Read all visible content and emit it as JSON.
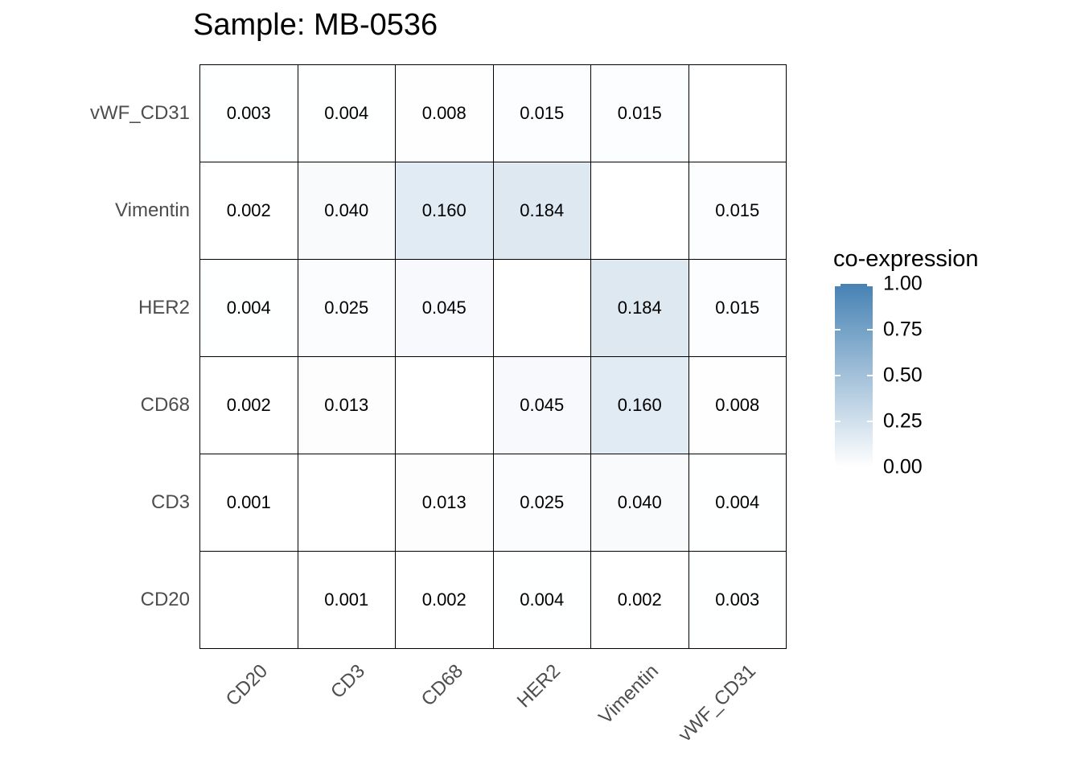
{
  "chart_data": {
    "type": "heatmap",
    "title": "Sample: MB-0536",
    "x_categories": [
      "CD20",
      "CD3",
      "CD68",
      "HER2",
      "Vimentin",
      "vWF_CD31"
    ],
    "y_categories_top_to_bottom": [
      "vWF_CD31",
      "Vimentin",
      "HER2",
      "CD68",
      "CD3",
      "CD20"
    ],
    "matrix_rows_top_to_bottom": [
      [
        0.003,
        0.004,
        0.008,
        0.015,
        0.015,
        null
      ],
      [
        0.002,
        0.04,
        0.16,
        0.184,
        null,
        0.015
      ],
      [
        0.004,
        0.025,
        0.045,
        null,
        0.184,
        0.015
      ],
      [
        0.002,
        0.013,
        null,
        0.045,
        0.16,
        0.008
      ],
      [
        0.001,
        null,
        0.013,
        0.025,
        0.04,
        0.004
      ],
      [
        null,
        0.001,
        0.002,
        0.004,
        0.002,
        0.003
      ]
    ],
    "value_decimals": 3,
    "diagonal_blank": true,
    "grid_lines": "black cell borders",
    "legend": {
      "title": "co-expression",
      "position": "right",
      "tick_labels": [
        "1.00",
        "0.75",
        "0.50",
        "0.25",
        "0.00"
      ],
      "scale_min": 0,
      "scale_max": 1
    },
    "colors": {
      "scale_low": "#FFFFFF",
      "scale_high": "#4682B4",
      "cell_border": "#000000",
      "axis_text": "#4D4D4D",
      "value_text": "#000000",
      "title_text": "#000000",
      "background": "#FFFFFF"
    }
  }
}
